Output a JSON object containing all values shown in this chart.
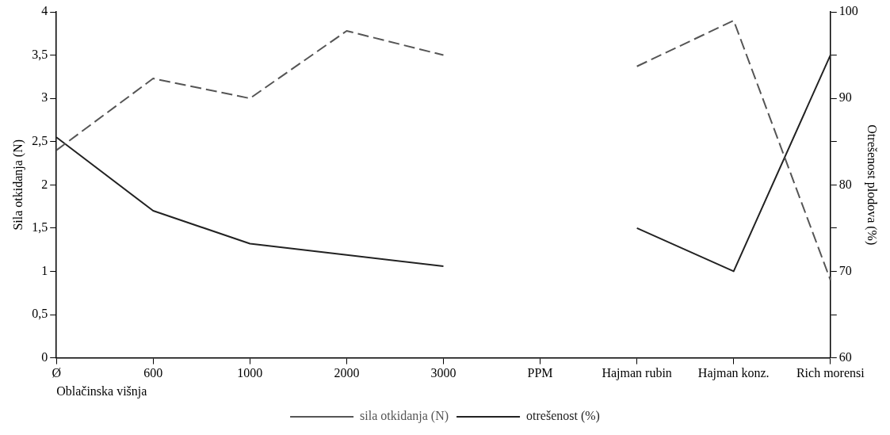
{
  "chart_data": {
    "type": "line",
    "xlabel": "Oblačinska višnja",
    "ylabel": "Sila otkidanja (N)",
    "y2label": "Otrešenost plodova (%)",
    "categories": [
      "Ø",
      "600",
      "1000",
      "2000",
      "3000",
      "PPM",
      "Hajman rubin",
      "Hajman konz.",
      "Rich morensi"
    ],
    "series": [
      {
        "name": "sila otkidanja (N)",
        "color": "#555555",
        "line_style": "dashed",
        "values": [
          2.4,
          3.23,
          3.0,
          3.78,
          3.5,
          null,
          3.37,
          3.9,
          0.9
        ]
      },
      {
        "name": "otrešenost (%)",
        "color": "#222222",
        "line_style": "solid",
        "axis": "y2",
        "values": [
          85.5,
          77,
          73.2,
          71.9,
          70.6,
          null,
          75,
          70,
          95
        ]
      }
    ],
    "ylim": [
      0,
      4
    ],
    "yticks": [
      0,
      {
        "value": 0.5,
        "label": "0,5"
      },
      1,
      {
        "value": 1.5,
        "label": "1,5"
      },
      2,
      {
        "value": 2.5,
        "label": "2,5"
      },
      3,
      {
        "value": 3.5,
        "label": "3,5"
      },
      4
    ],
    "y2lim": [
      60,
      100
    ],
    "y2ticks": [
      60,
      {
        "value": 65,
        "label": null
      },
      70,
      {
        "value": 75,
        "label": null
      },
      80,
      {
        "value": 85,
        "label": null
      },
      90,
      {
        "value": 95,
        "label": null
      },
      100
    ],
    "marker": "none",
    "grid": false,
    "legend": "bottom"
  }
}
